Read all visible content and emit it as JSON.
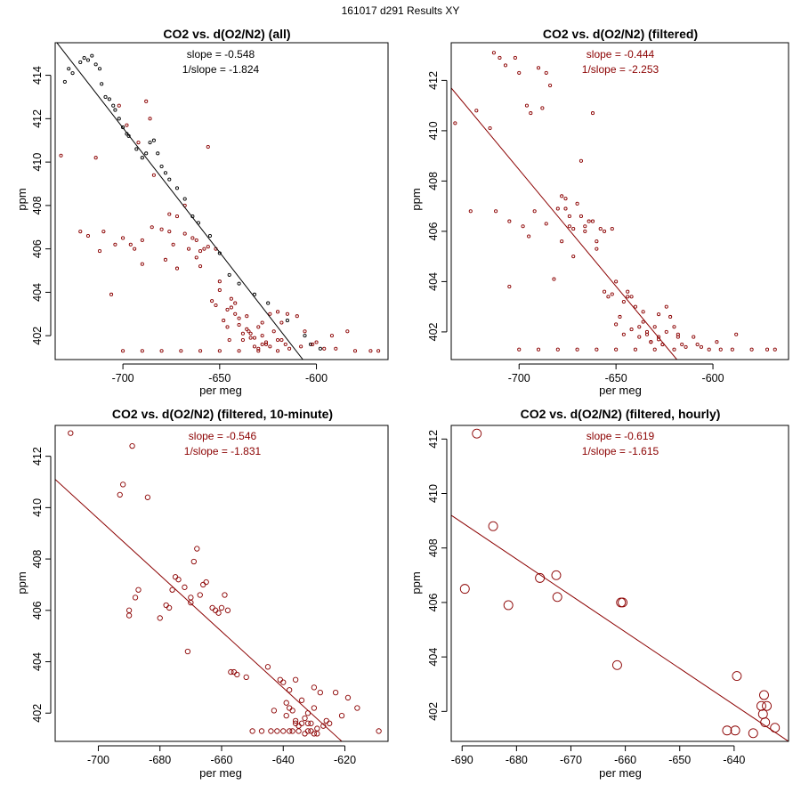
{
  "figure": {
    "super_title": "161017   d291   Results XY",
    "colors": {
      "dark_red": "#8b0000",
      "black": "#000000",
      "frame": "#000000"
    }
  },
  "chart_data": [
    {
      "type": "scatter",
      "title": "CO2 vs. d(O2/N2) (all)",
      "xlabel": "per meg",
      "ylabel": "ppm",
      "xlim": [
        -735,
        -563
      ],
      "ylim": [
        400.9,
        415.5
      ],
      "xticks": [
        -700,
        -650,
        -600
      ],
      "xtick_labels": [
        "-700",
        "-650",
        "-600"
      ],
      "yticks": [
        402,
        404,
        406,
        408,
        410,
        412,
        414
      ],
      "ytick_labels": [
        "402",
        "404",
        "406",
        "408",
        "410",
        "412",
        "414"
      ],
      "marker_radius": 1.6,
      "annotations": [
        "slope = -0.548",
        "1/slope = -1.824"
      ],
      "annotation_color": "#000000",
      "regression": {
        "x": [
          -735,
          -607
        ],
        "y": [
          415.6,
          400.9
        ],
        "color": "#000000"
      },
      "series": [
        {
          "name": "excluded",
          "color": "#000000",
          "x": [
            -730,
            -728,
            -726,
            -722,
            -720,
            -718,
            -716,
            -714,
            -712,
            -711,
            -709,
            -707,
            -705,
            -704,
            -702,
            -700,
            -698,
            -697,
            -693,
            -690,
            -688,
            -686,
            -684,
            -682,
            -680,
            -678,
            -676,
            -672,
            -668,
            -664,
            -661,
            -655,
            -650,
            -645,
            -640,
            -632,
            -625,
            -615,
            -606,
            -603,
            -598
          ],
          "y": [
            413.7,
            414.3,
            414.1,
            414.6,
            414.8,
            414.7,
            414.9,
            414.5,
            414.3,
            413.6,
            413.0,
            412.9,
            412.6,
            412.4,
            412.0,
            411.6,
            411.3,
            411.2,
            410.6,
            410.2,
            410.4,
            410.9,
            411.0,
            410.4,
            409.8,
            409.5,
            409.2,
            408.8,
            408.3,
            407.5,
            407.2,
            406.6,
            405.8,
            404.8,
            404.4,
            403.9,
            403.5,
            402.7,
            402.0,
            401.6,
            401.4
          ]
        },
        {
          "name": "filtered",
          "color": "#8b0000",
          "x": [
            -732,
            -722,
            -718,
            -714,
            -710,
            -706,
            -702,
            -698,
            -696,
            -694,
            -692,
            -690,
            -688,
            -686,
            -684,
            -680,
            -676,
            -672,
            -668,
            -664,
            -662,
            -660,
            -658,
            -656,
            -654,
            -652,
            -650,
            -648,
            -646,
            -644,
            -642,
            -640,
            -638,
            -636,
            -634,
            -632,
            -630,
            -628,
            -626,
            -624,
            -622,
            -620,
            -618,
            -616,
            -614,
            -610,
            -606,
            -602,
            -596,
            -590,
            -580,
            -572,
            -568,
            -700,
            -690,
            -680,
            -670,
            -660,
            -650,
            -640,
            -630,
            -620,
            -700,
            -704,
            -712,
            -690,
            -685,
            -676,
            -666,
            -656,
            -646,
            -638,
            -628,
            -618,
            -608,
            -600,
            -592,
            -584,
            -660,
            -650,
            -644,
            -636,
            -632,
            -628,
            -624,
            -668,
            -674,
            -678,
            -672,
            -662,
            -652,
            -642,
            -634,
            -626,
            -640,
            -645,
            -635,
            -630,
            -620,
            -615
          ],
          "y": [
            410.3,
            406.8,
            406.6,
            410.2,
            406.8,
            403.9,
            412.6,
            411.7,
            406.2,
            406.0,
            410.9,
            405.3,
            412.8,
            412.0,
            409.4,
            406.9,
            407.6,
            407.5,
            408.0,
            406.5,
            405.6,
            405.9,
            406.0,
            410.7,
            403.6,
            403.4,
            404.5,
            402.7,
            402.4,
            403.3,
            403.0,
            402.5,
            401.8,
            402.3,
            402.1,
            401.9,
            402.4,
            402.0,
            401.7,
            401.5,
            402.2,
            401.8,
            402.6,
            401.6,
            401.4,
            402.9,
            402.2,
            401.6,
            401.4,
            401.4,
            401.3,
            401.3,
            401.3,
            401.3,
            401.3,
            401.3,
            401.3,
            401.3,
            401.3,
            401.3,
            401.3,
            401.3,
            406.5,
            406.2,
            405.9,
            406.4,
            407.0,
            406.8,
            406.0,
            406.1,
            403.2,
            402.1,
            401.6,
            401.8,
            401.5,
            401.7,
            402.0,
            402.2,
            405.2,
            404.1,
            403.7,
            402.9,
            401.5,
            402.6,
            403.0,
            406.7,
            406.2,
            405.5,
            405.1,
            406.4,
            406.0,
            403.5,
            401.9,
            401.6,
            402.8,
            401.8,
            402.2,
            401.4,
            403.1,
            403.0
          ]
        }
      ]
    },
    {
      "type": "scatter",
      "title": "CO2 vs. d(O2/N2) (filtered)",
      "xlabel": "per meg",
      "ylabel": "ppm",
      "xlim": [
        -735,
        -561
      ],
      "ylim": [
        400.9,
        413.5
      ],
      "xticks": [
        -700,
        -650,
        -600
      ],
      "xtick_labels": [
        "-700",
        "-650",
        "-600"
      ],
      "yticks": [
        402,
        404,
        406,
        408,
        410,
        412
      ],
      "ytick_labels": [
        "402",
        "404",
        "406",
        "408",
        "410",
        "412"
      ],
      "marker_radius": 1.6,
      "annotations": [
        "slope = -0.444",
        "1/slope = -2.253"
      ],
      "annotation_color": "#8b0000",
      "regression": {
        "x": [
          -735,
          -618.6
        ],
        "y": [
          411.7,
          400.9
        ],
        "color": "#8b0000"
      },
      "series": [
        {
          "name": "filtered",
          "color": "#8b0000",
          "x": [
            -733,
            -725,
            -722,
            -715,
            -713,
            -710,
            -707,
            -705,
            -702,
            -700,
            -698,
            -696,
            -694,
            -692,
            -690,
            -688,
            -686,
            -684,
            -682,
            -680,
            -678,
            -676,
            -674,
            -672,
            -670,
            -668,
            -666,
            -664,
            -662,
            -660,
            -658,
            -656,
            -654,
            -652,
            -650,
            -648,
            -646,
            -644,
            -642,
            -640,
            -638,
            -636,
            -634,
            -632,
            -630,
            -628,
            -626,
            -624,
            -622,
            -620,
            -618,
            -616,
            -614,
            -610,
            -606,
            -602,
            -596,
            -590,
            -580,
            -572,
            -568,
            -700,
            -690,
            -680,
            -670,
            -660,
            -650,
            -640,
            -630,
            -620,
            -705,
            -712,
            -695,
            -686,
            -676,
            -666,
            -656,
            -646,
            -638,
            -628,
            -618,
            -608,
            -598,
            -588,
            -660,
            -650,
            -644,
            -636,
            -632,
            -628,
            -624,
            -668,
            -674,
            -678,
            -672,
            -662,
            -652,
            -642,
            -634,
            -626
          ],
          "y": [
            410.3,
            406.8,
            410.8,
            410.1,
            413.1,
            412.9,
            412.6,
            403.8,
            412.9,
            412.3,
            406.2,
            411.0,
            410.7,
            406.8,
            412.5,
            410.9,
            412.3,
            411.8,
            404.1,
            406.9,
            407.4,
            407.3,
            406.6,
            406.1,
            407.1,
            408.8,
            406.0,
            406.4,
            410.7,
            405.6,
            406.1,
            403.6,
            403.4,
            403.5,
            402.3,
            402.6,
            401.9,
            403.4,
            402.1,
            403.0,
            401.8,
            402.4,
            402.0,
            401.6,
            402.2,
            401.8,
            401.5,
            402.0,
            402.6,
            402.2,
            401.8,
            401.5,
            401.4,
            401.8,
            401.4,
            401.3,
            401.3,
            401.3,
            401.3,
            401.3,
            401.3,
            401.3,
            401.3,
            401.3,
            401.3,
            401.3,
            401.3,
            401.3,
            401.3,
            401.3,
            406.4,
            406.8,
            405.8,
            406.3,
            406.9,
            406.2,
            406.0,
            403.2,
            402.2,
            401.7,
            401.9,
            401.5,
            401.6,
            401.9,
            405.3,
            404.0,
            403.6,
            402.8,
            401.6,
            402.7,
            403.0,
            406.6,
            406.2,
            405.6,
            405.0,
            406.4,
            406.1,
            403.4,
            401.9,
            401.5
          ]
        }
      ]
    },
    {
      "type": "scatter",
      "title": "CO2 vs. d(O2/N2) (filtered, 10-minute)",
      "xlabel": "per meg",
      "ylabel": "ppm",
      "xlim": [
        -714,
        -606
      ],
      "ylim": [
        400.9,
        413.2
      ],
      "xticks": [
        -700,
        -680,
        -660,
        -640,
        -620
      ],
      "xtick_labels": [
        "-700",
        "-680",
        "-660",
        "-640",
        "-620"
      ],
      "yticks": [
        402,
        404,
        406,
        408,
        410,
        412
      ],
      "ytick_labels": [
        "402",
        "404",
        "406",
        "408",
        "410",
        "412"
      ],
      "marker_radius": 2.7,
      "annotations": [
        "slope = -0.546",
        "1/slope = -1.831"
      ],
      "annotation_color": "#8b0000",
      "regression": {
        "x": [
          -714,
          -621
        ],
        "y": [
          411.1,
          400.9
        ],
        "color": "#8b0000"
      },
      "series": [
        {
          "name": "10-minute means",
          "color": "#8b0000",
          "x": [
            -709,
            -693,
            -692,
            -689,
            -690,
            -690,
            -688,
            -687,
            -684,
            -680,
            -678,
            -677,
            -676,
            -675,
            -674,
            -672,
            -671,
            -670,
            -670,
            -669,
            -668,
            -667,
            -666,
            -665,
            -663,
            -662,
            -661,
            -660,
            -659,
            -658,
            -657,
            -656,
            -655,
            -652,
            -650,
            -647,
            -645,
            -643,
            -641,
            -640,
            -639,
            -639,
            -638,
            -638,
            -637,
            -636,
            -636,
            -635,
            -635,
            -634,
            -634,
            -633,
            -633,
            -632,
            -632,
            -631,
            -631,
            -630,
            -630,
            -629,
            -629,
            -628,
            -627,
            -626,
            -625,
            -623,
            -621,
            -619,
            -616,
            -609,
            -644,
            -642,
            -640,
            -637,
            -632,
            -638,
            -636,
            -630
          ],
          "y": [
            412.9,
            410.5,
            410.9,
            412.4,
            405.8,
            406.0,
            406.5,
            406.8,
            410.4,
            405.7,
            406.2,
            406.1,
            406.8,
            407.3,
            407.2,
            406.9,
            404.4,
            406.3,
            406.5,
            407.9,
            408.4,
            406.6,
            407.0,
            407.1,
            406.1,
            406.0,
            405.9,
            406.1,
            406.6,
            406.0,
            403.6,
            403.6,
            403.5,
            403.4,
            401.3,
            401.3,
            403.8,
            402.1,
            403.3,
            403.2,
            401.9,
            402.4,
            401.3,
            402.2,
            402.1,
            403.3,
            401.7,
            401.5,
            401.3,
            402.5,
            401.6,
            401.8,
            401.2,
            401.6,
            402.0,
            401.3,
            401.6,
            402.2,
            403.0,
            401.4,
            401.2,
            402.8,
            401.5,
            401.7,
            401.6,
            402.8,
            401.9,
            402.6,
            402.2,
            401.3,
            401.3,
            401.3,
            401.3,
            401.3,
            401.3,
            402.9,
            401.6,
            401.2
          ]
        }
      ]
    },
    {
      "type": "scatter",
      "title": "CO2 vs. d(O2/N2) (filtered, hourly)",
      "xlabel": "per meg",
      "ylabel": "ppm",
      "xlim": [
        -692,
        -630
      ],
      "ylim": [
        400.9,
        412.5
      ],
      "xticks": [
        -690,
        -680,
        -670,
        -660,
        -650,
        -640
      ],
      "xtick_labels": [
        "-690",
        "-680",
        "-670",
        "-660",
        "-650",
        "-640"
      ],
      "yticks": [
        402,
        404,
        406,
        408,
        410,
        412
      ],
      "ytick_labels": [
        "402",
        "404",
        "406",
        "408",
        "410",
        "412"
      ],
      "marker_radius": 5,
      "annotations": [
        "slope = -0.619",
        "1/slope = -1.615"
      ],
      "annotation_color": "#8b0000",
      "regression": {
        "x": [
          -692,
          -630
        ],
        "y": [
          409.2,
          400.9
        ],
        "color": "#8b0000"
      },
      "series": [
        {
          "name": "hourly means",
          "color": "#8b0000",
          "x": [
            -689.5,
            -687.3,
            -684.3,
            -681.5,
            -675.7,
            -672.7,
            -672.5,
            -661.5,
            -660.8,
            -660.5,
            -641.3,
            -639.8,
            -639.5,
            -636.5,
            -635.0,
            -634.7,
            -634.5,
            -634.3,
            -634.0,
            -632.5
          ],
          "y": [
            406.5,
            412.2,
            408.8,
            405.9,
            406.9,
            407.0,
            406.2,
            403.7,
            406.0,
            406.0,
            401.3,
            401.3,
            403.3,
            401.2,
            402.2,
            401.9,
            402.6,
            401.6,
            402.2,
            401.4
          ]
        }
      ]
    }
  ]
}
